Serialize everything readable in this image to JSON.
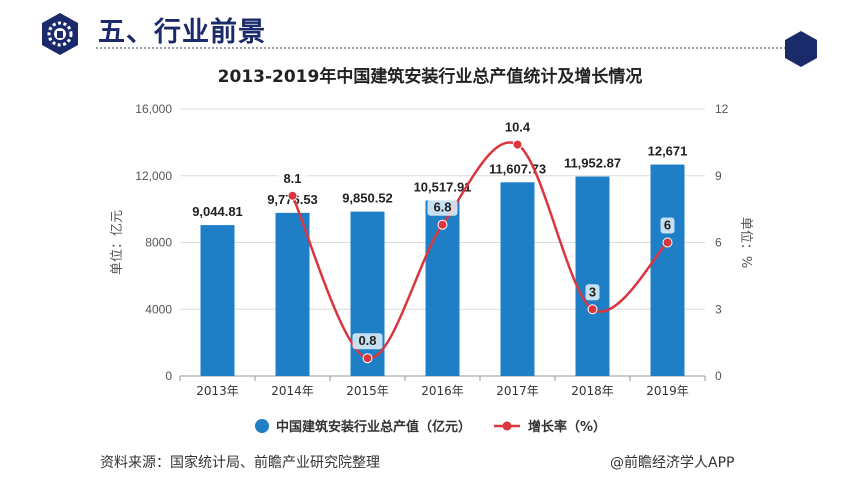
{
  "header": {
    "title": "五、行业前景"
  },
  "chart_data": {
    "type": "bar",
    "title": "2013-2019年中国建筑安装行业总产值统计及增长情况",
    "categories": [
      "2013年",
      "2014年",
      "2015年",
      "2016年",
      "2017年",
      "2018年",
      "2019年"
    ],
    "series": [
      {
        "name": "中国建筑安装行业总产值（亿元）",
        "type": "bar",
        "axis": "left",
        "color": "#1f7fc6",
        "values": [
          9044.81,
          9776.53,
          9850.52,
          10517.91,
          11607.73,
          11952.87,
          12671
        ],
        "labels": [
          "9,044.81",
          "9,776.53",
          "9,850.52",
          "10,517.91",
          "11,607.73",
          "11,952.87",
          "12,671"
        ]
      },
      {
        "name": "增长率（%）",
        "type": "line",
        "axis": "right",
        "color": "#d9363e",
        "values": [
          null,
          8.1,
          0.8,
          6.8,
          10.4,
          3,
          6
        ],
        "labels": [
          "",
          "8.1",
          "0.8",
          "6.8",
          "10.4",
          "3",
          "6"
        ]
      }
    ],
    "ylabel": "单位：亿元",
    "ylabel_right": "单位：%",
    "ylim": [
      0,
      16000
    ],
    "ylim_right": [
      0,
      12
    ],
    "yticks": [
      "0",
      "4000",
      "8000",
      "12,000",
      "16,000"
    ],
    "yticks_right": [
      "0",
      "3",
      "6",
      "9",
      "12"
    ],
    "grid": true,
    "legend_position": "bottom"
  },
  "footer": {
    "source": "资料来源：国家统计局、前瞻产业研究院整理",
    "credit": "@前瞻经济学人APP"
  },
  "colors": {
    "navy": "#1b2a6b",
    "bar": "#1f7fc6",
    "line": "#d9363e"
  }
}
